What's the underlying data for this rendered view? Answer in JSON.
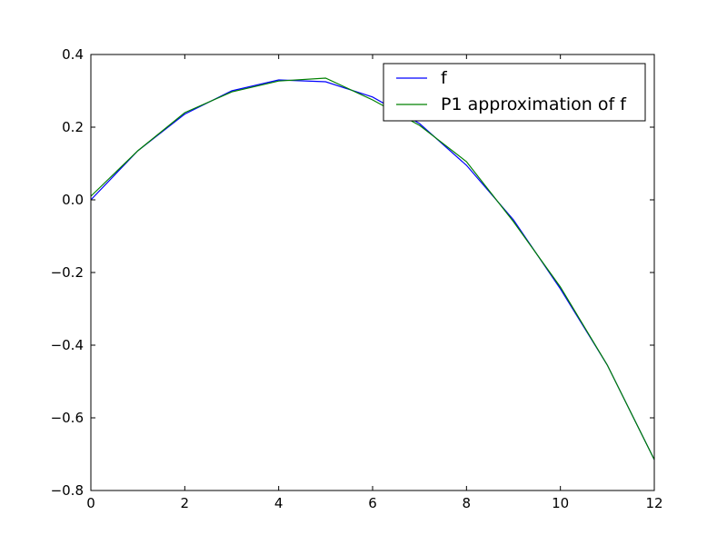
{
  "chart_data": {
    "type": "line",
    "title": "",
    "xlabel": "",
    "ylabel": "",
    "xlim": [
      0,
      12
    ],
    "ylim": [
      -0.8,
      0.4
    ],
    "xticks": [
      0,
      2,
      4,
      6,
      8,
      10,
      12
    ],
    "yticks": [
      -0.8,
      -0.6,
      -0.4,
      -0.2,
      0.0,
      0.2,
      0.4
    ],
    "xtick_labels": [
      "0",
      "2",
      "4",
      "6",
      "8",
      "10",
      "12"
    ],
    "ytick_labels": [
      "−0.8",
      "−0.6",
      "−0.4",
      "−0.2",
      "0.0",
      "0.2",
      "0.4"
    ],
    "grid": false,
    "legend_position": "top-right",
    "series": [
      {
        "name": "f",
        "color": "#0000ff",
        "x": [
          0,
          1,
          2,
          3,
          4,
          5,
          6,
          7,
          8,
          9,
          10,
          11,
          12
        ],
        "y": [
          0.0,
          0.135,
          0.236,
          0.3,
          0.33,
          0.325,
          0.283,
          0.21,
          0.095,
          -0.055,
          -0.245,
          -0.455,
          -0.715
        ]
      },
      {
        "name": "P1 approximation of f",
        "color": "#008000",
        "x": [
          0,
          1,
          2,
          3,
          4,
          5,
          6,
          7,
          8,
          9,
          10,
          11,
          12
        ],
        "y": [
          0.01,
          0.135,
          0.24,
          0.297,
          0.327,
          0.335,
          0.275,
          0.205,
          0.105,
          -0.06,
          -0.24,
          -0.455,
          -0.715
        ]
      }
    ]
  }
}
